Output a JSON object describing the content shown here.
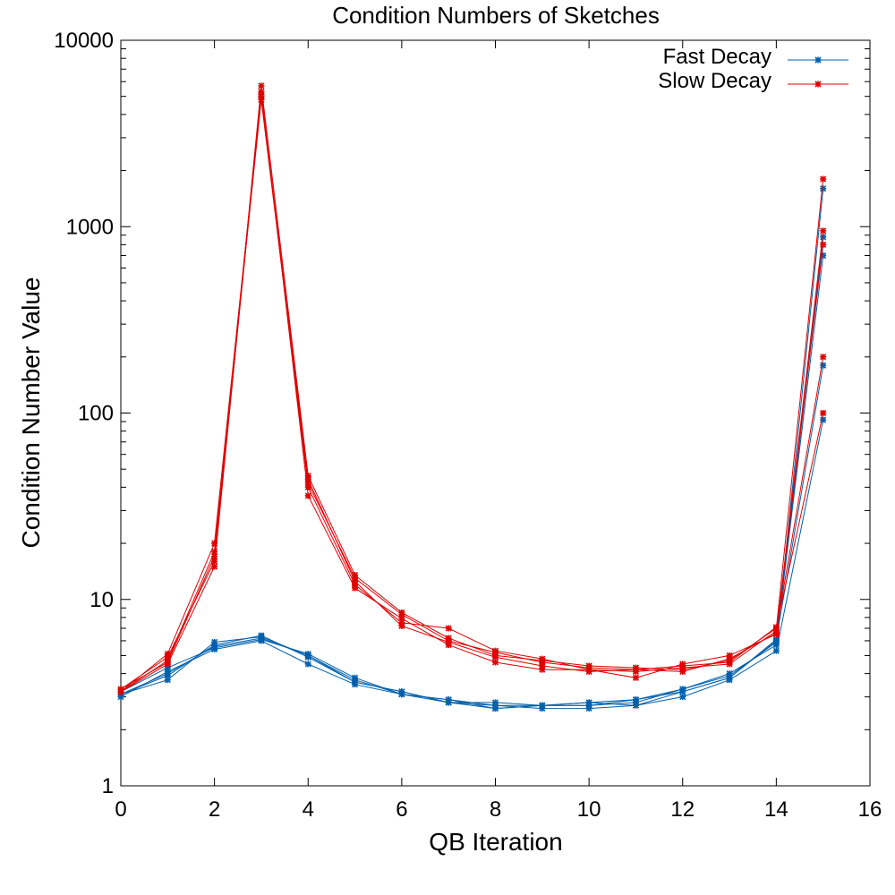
{
  "chart_data": {
    "type": "line",
    "title": "Condition Numbers of Sketches",
    "xlabel": "QB Iteration",
    "ylabel": "Condition Number Value",
    "xlim": [
      0,
      16
    ],
    "ylim": [
      1,
      10000
    ],
    "yscale": "log",
    "grid": false,
    "legend_position": "top-right",
    "x_ticks": [
      "0",
      "2",
      "4",
      "6",
      "8",
      "10",
      "12",
      "14",
      "16"
    ],
    "y_ticks": [
      "1",
      "10",
      "100",
      "1000",
      "10000"
    ],
    "x": [
      0,
      1,
      2,
      3,
      4,
      5,
      6,
      7,
      8,
      9,
      10,
      11,
      12,
      13,
      14,
      15
    ],
    "legend": [
      {
        "label": "Fast Decay",
        "color": "#0060ad"
      },
      {
        "label": "Slow Decay",
        "color": "#e00000"
      }
    ],
    "series": [
      {
        "group": "Fast Decay",
        "color": "#0060ad",
        "values": [
          3.1,
          3.7,
          5.9,
          6.3,
          5.0,
          3.7,
          3.1,
          2.9,
          2.6,
          2.7,
          2.7,
          2.8,
          3.3,
          3.9,
          5.9,
          880
        ]
      },
      {
        "group": "Fast Decay",
        "color": "#0060ad",
        "values": [
          3.0,
          4.1,
          5.4,
          6.0,
          4.5,
          3.5,
          3.1,
          2.8,
          2.7,
          2.6,
          2.6,
          2.7,
          3.0,
          3.7,
          5.3,
          92
        ]
      },
      {
        "group": "Fast Decay",
        "color": "#0060ad",
        "values": [
          3.1,
          3.9,
          5.7,
          6.4,
          4.9,
          3.6,
          3.2,
          2.8,
          2.8,
          2.7,
          2.8,
          2.9,
          3.2,
          3.8,
          6.1,
          180
        ]
      },
      {
        "group": "Fast Decay",
        "color": "#0060ad",
        "values": [
          3.2,
          4.3,
          5.5,
          6.1,
          5.1,
          3.8,
          3.1,
          2.9,
          2.7,
          2.7,
          2.7,
          2.9,
          3.3,
          4.0,
          5.7,
          1600
        ]
      },
      {
        "group": "Fast Decay",
        "color": "#0060ad",
        "values": [
          3.1,
          4.0,
          5.6,
          6.2,
          5.0,
          3.6,
          3.2,
          2.8,
          2.6,
          2.7,
          2.8,
          2.7,
          3.2,
          3.8,
          6.0,
          700
        ]
      },
      {
        "group": "Slow Decay",
        "color": "#e00000",
        "values": [
          3.2,
          4.5,
          15,
          5700,
          46,
          13.5,
          8.5,
          6.2,
          5.0,
          4.7,
          4.4,
          4.3,
          4.2,
          4.7,
          7.0,
          1800
        ]
      },
      {
        "group": "Slow Decay",
        "color": "#e00000",
        "values": [
          3.2,
          5.1,
          20,
          5000,
          40,
          12,
          7.5,
          7.0,
          5.3,
          4.8,
          4.2,
          3.8,
          4.5,
          5.0,
          6.5,
          950
        ]
      },
      {
        "group": "Slow Decay",
        "color": "#e00000",
        "values": [
          3.3,
          4.6,
          17,
          5300,
          36,
          11.5,
          7.9,
          5.7,
          4.6,
          4.2,
          4.2,
          4.1,
          4.3,
          4.5,
          6.8,
          200
        ]
      },
      {
        "group": "Slow Decay",
        "color": "#e00000",
        "values": [
          3.2,
          4.7,
          18,
          4800,
          42,
          13,
          8.3,
          6.0,
          5.2,
          4.6,
          4.3,
          4.2,
          4.1,
          4.8,
          6.6,
          800
        ]
      },
      {
        "group": "Slow Decay",
        "color": "#e00000",
        "values": [
          3.3,
          4.9,
          16,
          5100,
          44,
          12.5,
          7.2,
          5.9,
          4.9,
          4.4,
          4.1,
          4.2,
          4.4,
          4.6,
          7.1,
          100
        ]
      }
    ]
  }
}
